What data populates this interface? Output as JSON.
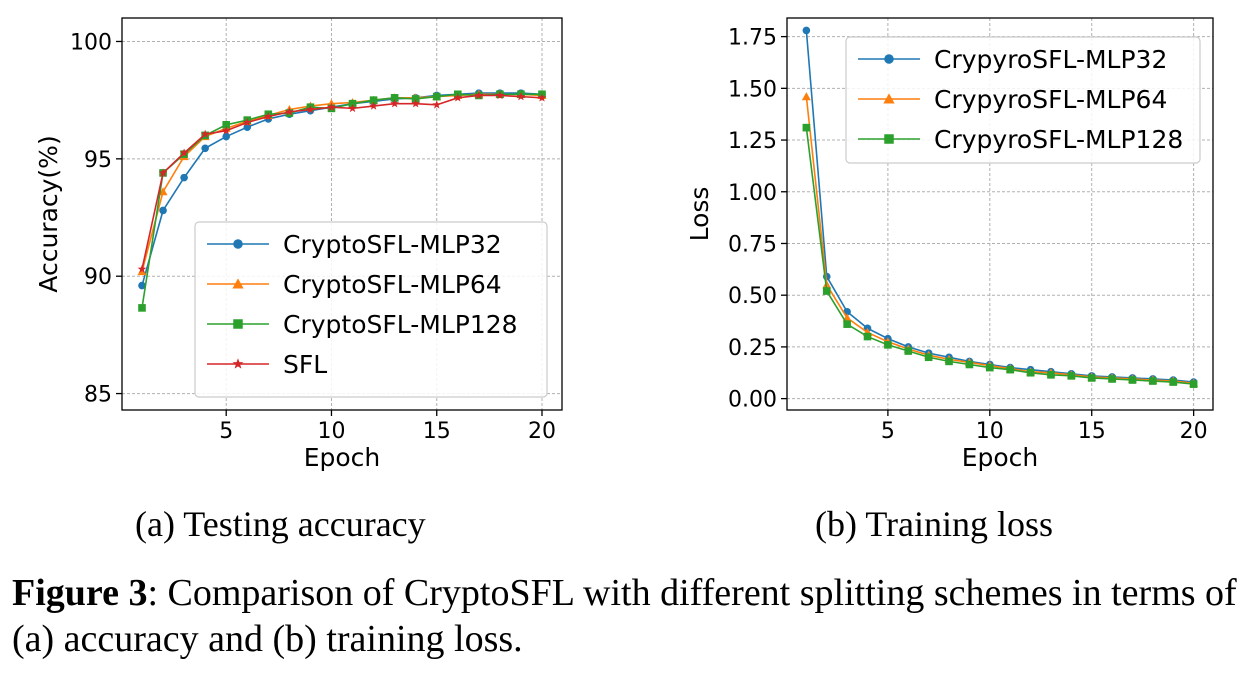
{
  "colors": {
    "blue": "#1f77b4",
    "orange": "#ff7f0e",
    "green": "#2ca02c",
    "red": "#d62728"
  },
  "subcaptions": [
    "(a)  Testing accuracy",
    "(b)  Training loss"
  ],
  "caption": {
    "label": "Figure 3",
    "text": ": Comparison of CryptoSFL with different splitting schemes in terms of (a) accuracy and (b) training loss."
  },
  "chart_data": [
    {
      "type": "line",
      "xlabel": "Epoch",
      "ylabel": "Accuracy(%)",
      "xlim": [
        0.05,
        20.95
      ],
      "ylim": [
        84.3,
        101
      ],
      "xticks": [
        5,
        10,
        15,
        20
      ],
      "yticks": [
        85,
        90,
        95,
        100
      ],
      "grid": true,
      "legend_position": "lower-right",
      "x": [
        1,
        2,
        3,
        4,
        5,
        6,
        7,
        8,
        9,
        10,
        11,
        12,
        13,
        14,
        15,
        16,
        17,
        18,
        19,
        20
      ],
      "series": [
        {
          "name": "CryptoSFL-MLP32",
          "color": "#1f77b4",
          "marker": "circle",
          "values": [
            89.6,
            92.8,
            94.2,
            95.45,
            95.95,
            96.35,
            96.7,
            96.9,
            97.05,
            97.2,
            97.35,
            97.45,
            97.55,
            97.6,
            97.7,
            97.75,
            97.8,
            97.8,
            97.8,
            97.75
          ]
        },
        {
          "name": "CryptoSFL-MLP64",
          "color": "#ff7f0e",
          "marker": "triangle",
          "values": [
            90.2,
            93.6,
            95.1,
            95.95,
            96.3,
            96.6,
            96.85,
            97.1,
            97.25,
            97.35,
            97.4,
            97.5,
            97.6,
            97.6,
            97.65,
            97.7,
            97.75,
            97.75,
            97.75,
            97.7
          ]
        },
        {
          "name": "CryptoSFL-MLP128",
          "color": "#2ca02c",
          "marker": "square",
          "values": [
            88.65,
            94.4,
            95.2,
            96.0,
            96.45,
            96.65,
            96.9,
            96.95,
            97.2,
            97.15,
            97.35,
            97.5,
            97.6,
            97.55,
            97.65,
            97.75,
            97.7,
            97.75,
            97.75,
            97.75
          ]
        },
        {
          "name": "SFL",
          "color": "#d62728",
          "marker": "star",
          "values": [
            90.3,
            94.4,
            95.25,
            96.05,
            96.2,
            96.55,
            96.8,
            97.0,
            97.1,
            97.2,
            97.15,
            97.25,
            97.35,
            97.35,
            97.3,
            97.6,
            97.7,
            97.7,
            97.65,
            97.6
          ]
        }
      ]
    },
    {
      "type": "line",
      "xlabel": "Epoch",
      "ylabel": "Loss",
      "xlim": [
        0.05,
        20.95
      ],
      "ylim": [
        -0.055,
        1.84
      ],
      "xticks": [
        5,
        10,
        15,
        20
      ],
      "yticks": [
        0.0,
        0.25,
        0.5,
        0.75,
        1.0,
        1.25,
        1.5,
        1.75
      ],
      "ytick_labels": [
        "0.00",
        "0.25",
        "0.50",
        "0.75",
        "1.00",
        "1.25",
        "1.50",
        "1.75"
      ],
      "grid": true,
      "legend_position": "top-right",
      "x": [
        1,
        2,
        3,
        4,
        5,
        6,
        7,
        8,
        9,
        10,
        11,
        12,
        13,
        14,
        15,
        16,
        17,
        18,
        19,
        20
      ],
      "series": [
        {
          "name": "CrypyroSFL-MLP32",
          "color": "#1f77b4",
          "marker": "circle",
          "values": [
            1.78,
            0.59,
            0.42,
            0.34,
            0.29,
            0.25,
            0.22,
            0.2,
            0.18,
            0.165,
            0.15,
            0.14,
            0.13,
            0.12,
            0.11,
            0.105,
            0.1,
            0.095,
            0.09,
            0.08
          ]
        },
        {
          "name": "CrypyroSFL-MLP64",
          "color": "#ff7f0e",
          "marker": "triangle",
          "values": [
            1.46,
            0.55,
            0.39,
            0.32,
            0.275,
            0.24,
            0.21,
            0.19,
            0.175,
            0.16,
            0.145,
            0.13,
            0.125,
            0.115,
            0.105,
            0.1,
            0.095,
            0.09,
            0.085,
            0.075
          ]
        },
        {
          "name": "CrypyroSFL-MLP128",
          "color": "#2ca02c",
          "marker": "square",
          "values": [
            1.31,
            0.52,
            0.36,
            0.3,
            0.26,
            0.23,
            0.2,
            0.18,
            0.165,
            0.15,
            0.14,
            0.125,
            0.115,
            0.11,
            0.1,
            0.095,
            0.09,
            0.085,
            0.08,
            0.07
          ]
        }
      ]
    }
  ]
}
